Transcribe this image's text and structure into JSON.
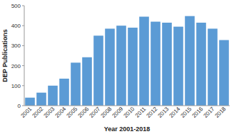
{
  "chart_data": {
    "type": "bar",
    "categories": [
      "2001",
      "2002",
      "2003",
      "2004",
      "2005",
      "2006",
      "2007",
      "2008",
      "2009",
      "2010",
      "2011",
      "2012",
      "2013",
      "2014",
      "2015",
      "2016",
      "2017",
      "2018"
    ],
    "values": [
      40,
      65,
      100,
      135,
      215,
      242,
      350,
      385,
      400,
      390,
      445,
      420,
      415,
      395,
      448,
      415,
      385,
      328
    ],
    "color": "#5b9bd5",
    "xlabel": "Year 2001-2018",
    "ylabel": "DEP Publications",
    "ylim": [
      0,
      500
    ],
    "yticks": [
      0,
      100,
      200,
      300,
      400,
      500
    ]
  }
}
